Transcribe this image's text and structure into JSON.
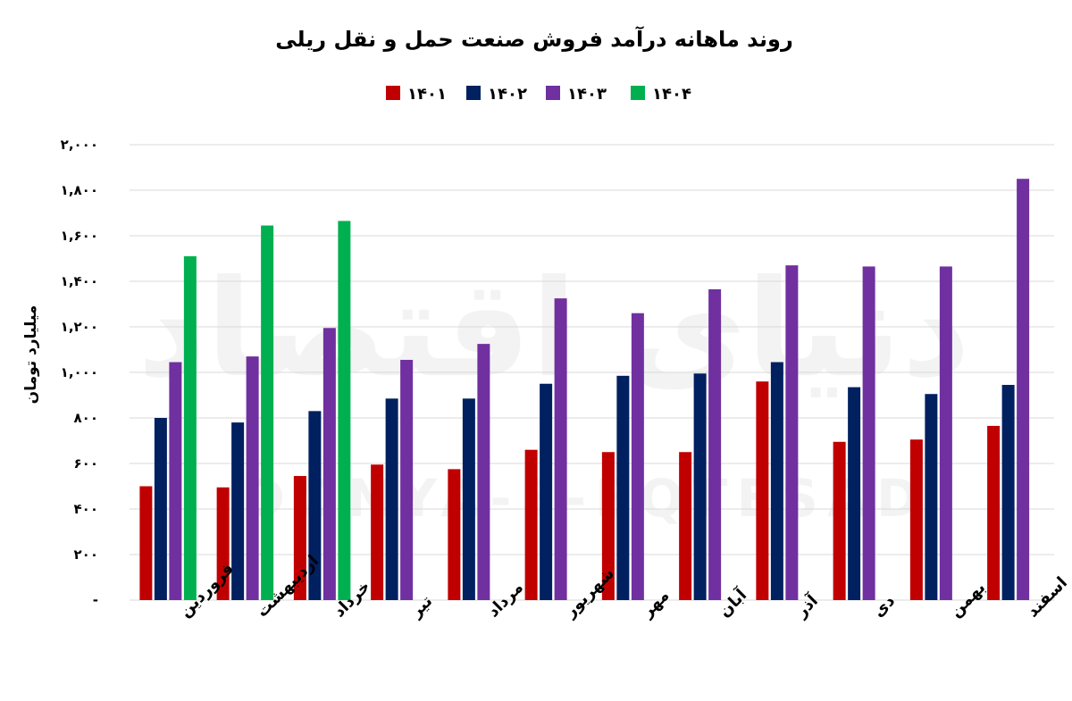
{
  "chart_data": {
    "type": "bar",
    "title": "روند ماهانه درآمد فروش صنعت حمل و نقل ریلی",
    "ylabel": "میلیارد تومان",
    "xlabel": "",
    "ylim": [
      0,
      2000
    ],
    "yticks": [
      {
        "value": 0,
        "label": "-"
      },
      {
        "value": 200,
        "label": "۲۰۰"
      },
      {
        "value": 400,
        "label": "۴۰۰"
      },
      {
        "value": 600,
        "label": "۶۰۰"
      },
      {
        "value": 800,
        "label": "۸۰۰"
      },
      {
        "value": 1000,
        "label": "۱,۰۰۰"
      },
      {
        "value": 1200,
        "label": "۱,۲۰۰"
      },
      {
        "value": 1400,
        "label": "۱,۴۰۰"
      },
      {
        "value": 1600,
        "label": "۱,۶۰۰"
      },
      {
        "value": 1800,
        "label": "۱,۸۰۰"
      },
      {
        "value": 2000,
        "label": "۲,۰۰۰"
      }
    ],
    "grid": true,
    "legend_position": "top-center",
    "categories": [
      "فروردین",
      "اردیبهشت",
      "خرداد",
      "تیر",
      "مرداد",
      "شهریور",
      "مهر",
      "آبان",
      "آذر",
      "دی",
      "بهمن",
      "اسفند"
    ],
    "series": [
      {
        "name": "۱۴۰۱",
        "color": "#c00000",
        "values": [
          500,
          495,
          545,
          595,
          575,
          660,
          650,
          650,
          960,
          695,
          705,
          765
        ]
      },
      {
        "name": "۱۴۰۲",
        "color": "#002060",
        "values": [
          800,
          780,
          830,
          885,
          885,
          950,
          985,
          995,
          1045,
          935,
          905,
          945
        ]
      },
      {
        "name": "۱۴۰۳",
        "color": "#7030a0",
        "values": [
          1045,
          1070,
          1195,
          1055,
          1125,
          1325,
          1260,
          1365,
          1470,
          1465,
          1465,
          1850
        ]
      },
      {
        "name": "۱۴۰۴",
        "color": "#00b050",
        "values": [
          1510,
          1645,
          1665,
          null,
          null,
          null,
          null,
          null,
          null,
          null,
          null,
          null
        ]
      }
    ]
  },
  "watermark": {
    "logo_text": "دنیای اقتصاد",
    "latin_text": "DONYA-E-EQTESAD"
  }
}
